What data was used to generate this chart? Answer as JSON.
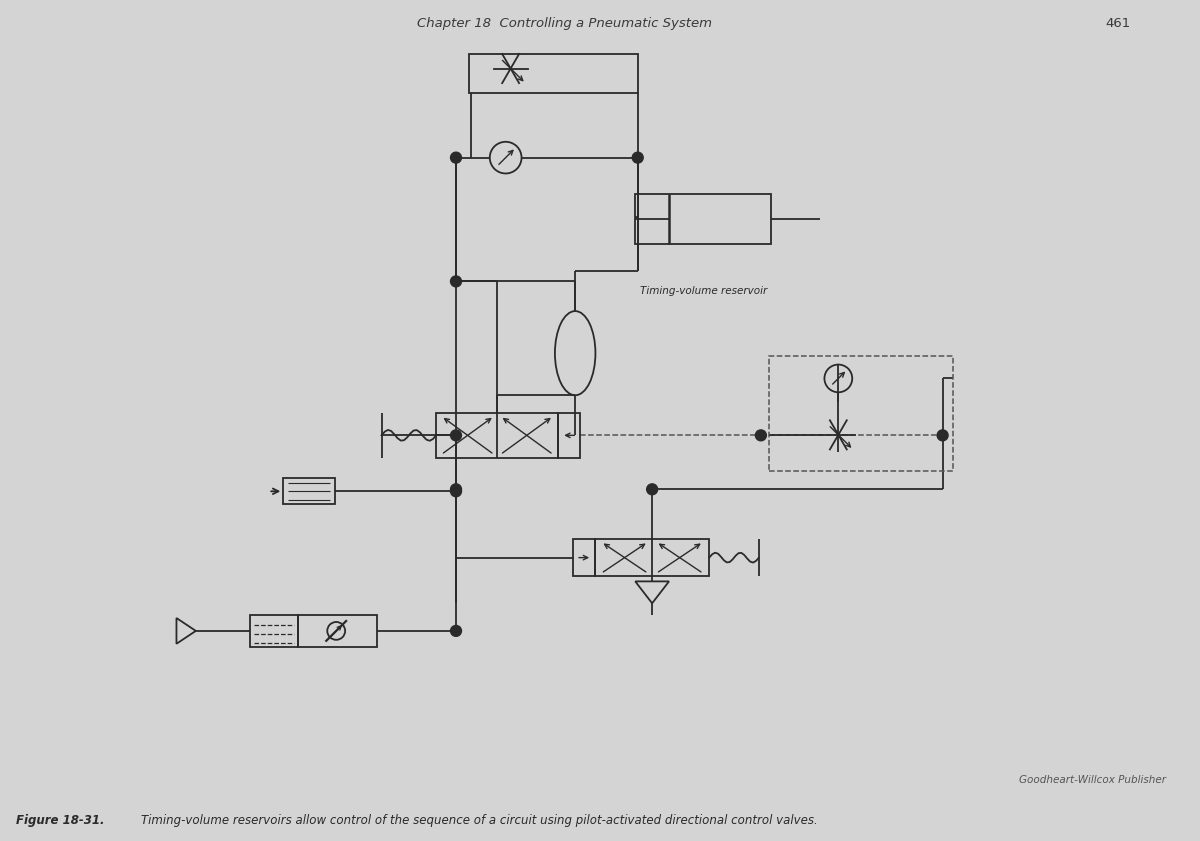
{
  "title": "Chapter 18  Controlling a Pneumatic System",
  "page_num": "461",
  "fig_label": "Figure 18-31.",
  "fig_caption": "Timing-volume reservoirs allow control of the sequence of a circuit using pilot-activated directional control valves.",
  "publisher": "Goodheart-Willcox Publisher",
  "timing_volume_label": "Timing-volume reservoir",
  "bg_color": "#d4d4d4",
  "line_color": "#2a2a2a",
  "dashed_color": "#555555"
}
